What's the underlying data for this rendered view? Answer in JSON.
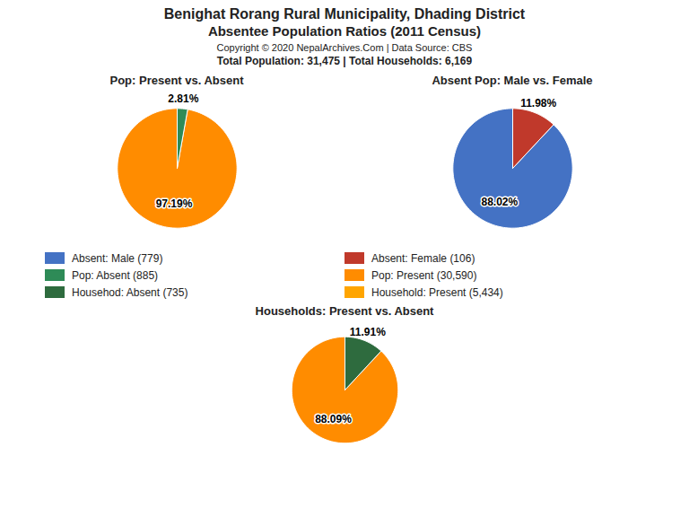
{
  "title": "Benighat Rorang Rural Municipality, Dhading District",
  "subtitle": "Absentee Population Ratios (2011 Census)",
  "annotations": [
    "Copyright © 2020 NepalArchives.Com | Data Source: CBS",
    "Total Population: 31,475 | Total Households: 6,169"
  ],
  "legend_items": [
    {
      "label": "Absent: Male (779)",
      "color": "#4472C4"
    },
    {
      "label": "Absent: Female (106)",
      "color": "#C0392B"
    },
    {
      "label": "Pop: Absent (885)",
      "color": "#2E8B57"
    },
    {
      "label": "Pop: Present (30,590)",
      "color": "#FF8C00"
    },
    {
      "label": "Househod: Absent (735)",
      "color": "#2E6B3E"
    },
    {
      "label": "Household: Present (5,434)",
      "color": "#FFA500"
    }
  ],
  "chart_data": [
    {
      "type": "pie",
      "title": "Pop: Present vs. Absent",
      "values": [
        97.19,
        2.81
      ],
      "value_labels": [
        "97.19%",
        "2.81%"
      ],
      "colors": [
        "#FF8C00",
        "#2E8B57"
      ],
      "data_labels": true
    },
    {
      "type": "pie",
      "title": "Absent Pop: Male vs. Female",
      "values": [
        88.02,
        11.98
      ],
      "value_labels": [
        "88.02%",
        "11.98%"
      ],
      "colors": [
        "#4472C4",
        "#C0392B"
      ],
      "data_labels": true
    },
    {
      "type": "pie",
      "title": "Households: Present vs. Absent",
      "values": [
        88.09,
        11.91
      ],
      "value_labels": [
        "88.09%",
        "11.91%"
      ],
      "colors": [
        "#FF8C00",
        "#2E6B3E"
      ],
      "data_labels": true
    }
  ]
}
